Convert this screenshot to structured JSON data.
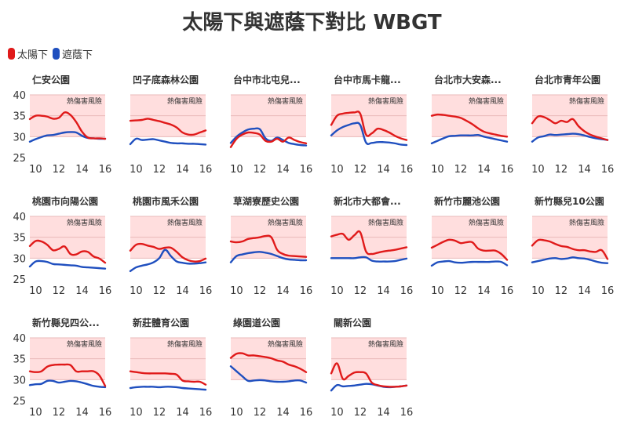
{
  "chart_data": {
    "type": "line",
    "title": "太陽下與遮蔭下對比 WBGT",
    "legend": [
      {
        "name": "太陽下",
        "color": "#e01a1a"
      },
      {
        "name": "遮蔭下",
        "color": "#1f4fbf"
      }
    ],
    "shaded_label": "熱傷害風險",
    "shaded_from": 30,
    "ylim": [
      25,
      40
    ],
    "xlim": [
      9.5,
      16
    ],
    "x_ticks": [
      10,
      12,
      14,
      16
    ],
    "y_ticks": [
      25,
      30,
      35,
      40
    ],
    "x": [
      9.5,
      10,
      10.5,
      11,
      11.5,
      12,
      12.5,
      13,
      13.5,
      14,
      14.5,
      15,
      15.5,
      16
    ],
    "panels": [
      {
        "title": "仁安公園",
        "sun": [
          34.2,
          35.0,
          35.0,
          34.8,
          34.3,
          34.5,
          35.8,
          35.2,
          33.5,
          31.2,
          29.8,
          29.6,
          29.6,
          29.5
        ],
        "shade": [
          28.8,
          29.4,
          29.9,
          30.3,
          30.4,
          30.7,
          31.0,
          31.1,
          31.0,
          30.2,
          29.7,
          29.6,
          29.5,
          29.5
        ]
      },
      {
        "title": "凹子底森林公園",
        "sun": [
          33.8,
          33.9,
          34.0,
          34.3,
          34.0,
          33.7,
          33.3,
          32.9,
          32.2,
          31.0,
          30.5,
          30.5,
          31.0,
          31.5
        ],
        "shade": [
          28.2,
          29.5,
          29.2,
          29.3,
          29.4,
          29.1,
          28.8,
          28.5,
          28.4,
          28.4,
          28.3,
          28.3,
          28.2,
          28.1
        ]
      },
      {
        "title": "台中市北屯兒...",
        "sun": [
          27.5,
          29.5,
          30.5,
          31.0,
          30.9,
          30.5,
          29.0,
          28.8,
          29.5,
          28.8,
          29.8,
          29.2,
          28.7,
          28.4
        ],
        "shade": [
          28.5,
          30.0,
          31.0,
          31.7,
          31.9,
          31.8,
          29.6,
          29.0,
          29.8,
          29.2,
          28.5,
          28.2,
          28.0,
          27.9
        ]
      },
      {
        "title": "台中市馬卡龍...",
        "sun": [
          32.8,
          35.0,
          35.5,
          35.7,
          35.8,
          35.5,
          30.5,
          30.8,
          31.9,
          31.6,
          31.0,
          30.2,
          29.6,
          29.2
        ],
        "shade": [
          30.3,
          31.5,
          32.3,
          32.8,
          33.2,
          32.8,
          28.6,
          28.5,
          28.7,
          28.7,
          28.6,
          28.4,
          28.1,
          28.0
        ]
      },
      {
        "title": "台北市大安森...",
        "sun": [
          35.0,
          35.3,
          35.2,
          35.0,
          34.8,
          34.5,
          33.8,
          33.0,
          32.0,
          31.2,
          30.8,
          30.5,
          30.2,
          30.0
        ],
        "shade": [
          28.4,
          29.0,
          29.6,
          30.1,
          30.2,
          30.3,
          30.3,
          30.3,
          30.4,
          30.0,
          29.7,
          29.4,
          29.1,
          28.8
        ]
      },
      {
        "title": "台北市青年公園",
        "sun": [
          33.2,
          34.8,
          34.7,
          34.0,
          33.2,
          33.8,
          33.5,
          34.2,
          32.5,
          31.3,
          30.5,
          30.0,
          29.6,
          29.2
        ],
        "shade": [
          28.8,
          29.8,
          30.1,
          30.5,
          30.4,
          30.5,
          30.6,
          30.7,
          30.6,
          30.3,
          29.9,
          29.6,
          29.4,
          29.2
        ]
      },
      {
        "title": "桃園市向陽公園",
        "sun": [
          32.9,
          34.1,
          34.0,
          33.2,
          31.9,
          32.2,
          32.8,
          31.0,
          30.9,
          31.6,
          31.5,
          30.4,
          29.9,
          28.9
        ],
        "shade": [
          28.0,
          29.2,
          29.3,
          29.1,
          28.6,
          28.5,
          28.4,
          28.3,
          28.2,
          27.9,
          27.8,
          27.7,
          27.6,
          27.5
        ]
      },
      {
        "title": "桃園市風禾公園",
        "sun": [
          31.8,
          33.2,
          33.4,
          33.0,
          32.7,
          32.2,
          32.5,
          32.5,
          31.5,
          30.2,
          29.5,
          29.2,
          29.3,
          29.9
        ],
        "shade": [
          26.9,
          27.8,
          28.2,
          28.5,
          29.0,
          30.0,
          32.0,
          30.5,
          29.2,
          28.9,
          28.7,
          28.7,
          28.8,
          29.0
        ]
      },
      {
        "title": "草湖寮歷史公園",
        "sun": [
          34.0,
          33.8,
          34.0,
          34.6,
          34.8,
          35.0,
          35.3,
          35.0,
          32.0,
          31.0,
          30.6,
          30.5,
          30.4,
          30.3
        ],
        "shade": [
          29.0,
          30.5,
          30.9,
          31.2,
          31.4,
          31.5,
          31.3,
          31.0,
          30.5,
          30.0,
          29.7,
          29.6,
          29.5,
          29.5
        ]
      },
      {
        "title": "新北市大都會...",
        "sun": [
          35.2,
          35.6,
          35.8,
          34.4,
          35.5,
          36.2,
          31.6,
          31.0,
          31.3,
          31.6,
          31.8,
          32.0,
          32.3,
          32.6
        ],
        "shade": [
          30.0,
          30.0,
          30.0,
          30.0,
          30.0,
          30.2,
          30.2,
          29.4,
          29.2,
          29.2,
          29.2,
          29.3,
          29.6,
          29.9
        ]
      },
      {
        "title": "新竹市麗池公園",
        "sun": [
          32.5,
          33.2,
          33.9,
          34.4,
          34.2,
          33.6,
          33.8,
          33.8,
          32.3,
          31.8,
          31.8,
          31.8,
          31.0,
          29.6
        ],
        "shade": [
          28.2,
          29.0,
          29.2,
          29.3,
          29.0,
          28.9,
          29.0,
          29.1,
          29.1,
          29.1,
          29.1,
          29.2,
          29.1,
          28.3
        ]
      },
      {
        "title": "新竹縣兒10公園",
        "sun": [
          33.0,
          34.3,
          34.3,
          34.0,
          33.4,
          32.9,
          32.7,
          32.2,
          31.9,
          31.9,
          31.6,
          31.5,
          31.9,
          29.8
        ],
        "shade": [
          29.0,
          29.3,
          29.6,
          29.9,
          30.0,
          29.8,
          29.9,
          30.2,
          30.0,
          29.9,
          29.6,
          29.2,
          28.9,
          28.8
        ]
      },
      {
        "title": "新竹縣兒四公...",
        "sun": [
          32.0,
          31.8,
          32.0,
          33.1,
          33.5,
          33.6,
          33.6,
          33.5,
          32.0,
          32.0,
          32.0,
          32.0,
          31.0,
          28.5
        ],
        "shade": [
          28.7,
          28.9,
          29.0,
          29.7,
          29.7,
          29.3,
          29.5,
          29.7,
          29.6,
          29.3,
          28.9,
          28.5,
          28.3,
          28.2
        ]
      },
      {
        "title": "新莊體育公園",
        "sun": [
          32.0,
          31.8,
          31.6,
          31.5,
          31.5,
          31.5,
          31.5,
          31.4,
          31.2,
          29.8,
          29.6,
          29.5,
          29.5,
          28.8
        ],
        "shade": [
          28.0,
          28.2,
          28.3,
          28.3,
          28.3,
          28.2,
          28.3,
          28.3,
          28.2,
          28.0,
          27.9,
          27.8,
          27.7,
          27.6
        ]
      },
      {
        "title": "綠園道公園",
        "sun": [
          35.2,
          36.2,
          36.3,
          35.8,
          35.8,
          35.6,
          35.4,
          35.1,
          34.6,
          34.3,
          33.6,
          33.2,
          32.6,
          31.8
        ],
        "shade": [
          33.2,
          32.0,
          30.8,
          29.7,
          29.8,
          29.9,
          29.8,
          29.6,
          29.5,
          29.5,
          29.6,
          29.8,
          29.8,
          29.3
        ]
      },
      {
        "title": "關新公園",
        "sun": [
          31.5,
          33.9,
          30.2,
          30.9,
          31.7,
          31.8,
          31.5,
          29.3,
          28.7,
          28.4,
          28.3,
          28.3,
          28.4,
          28.6
        ],
        "shade": [
          27.4,
          28.7,
          28.4,
          28.5,
          28.6,
          28.8,
          29.0,
          28.9,
          28.6,
          28.3,
          28.2,
          28.3,
          28.4,
          28.6
        ]
      }
    ]
  }
}
